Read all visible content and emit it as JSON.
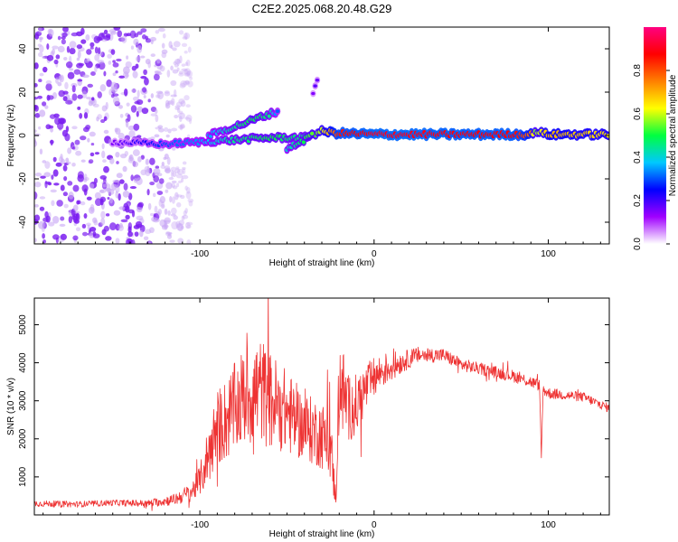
{
  "title": "C2E2.2025.068.20.48.G29",
  "chart_data": [
    {
      "type": "heatmap",
      "xlabel": "Height of straight line (km)",
      "ylabel": "Frequency (Hz)",
      "xlim": [
        -195,
        135
      ],
      "ylim": [
        -50,
        50
      ],
      "xticks": [
        -100,
        0,
        100
      ],
      "yticks": [
        -40,
        -20,
        0,
        20,
        40
      ],
      "colorbar": {
        "label": "Normalized spectral amplitude",
        "range": [
          0.0,
          1.0
        ],
        "ticks": [
          0.0,
          0.2,
          0.4,
          0.6,
          0.8
        ],
        "colors": [
          "#ffffff",
          "#a000ff",
          "#0000ff",
          "#00c8ff",
          "#00ff40",
          "#ffff00",
          "#ff8000",
          "#ff0000",
          "#ff0080"
        ]
      },
      "features": [
        {
          "name": "noise region",
          "x_range": [
            -195,
            -105
          ],
          "freq_range": [
            -50,
            50
          ],
          "amplitude": 0.1
        },
        {
          "name": "carrier trace",
          "x": [
            -150,
            -120,
            -100,
            -80,
            -60,
            -40,
            -30,
            -20,
            0,
            20,
            50,
            80,
            90,
            92,
            100,
            135
          ],
          "freq": [
            -3,
            -4,
            -3,
            -2,
            -1,
            -1,
            2,
            1,
            0.5,
            0.5,
            0.5,
            0.5,
            0.5,
            2,
            0.5,
            0.5
          ],
          "amplitude": [
            0.15,
            0.3,
            0.35,
            0.45,
            0.5,
            0.45,
            0.6,
            0.85,
            0.9,
            0.9,
            0.88,
            0.88,
            0.75,
            0.55,
            0.7,
            0.65
          ]
        },
        {
          "name": "upper branch",
          "x": [
            -95,
            -80,
            -70,
            -60,
            -55
          ],
          "freq": [
            0,
            4,
            7,
            10,
            11
          ],
          "amplitude": [
            0.35,
            0.45,
            0.5,
            0.45,
            0.3
          ]
        },
        {
          "name": "lower branch",
          "x": [
            -50,
            -45,
            -40,
            -35
          ],
          "freq": [
            -6,
            -4,
            -2,
            1
          ],
          "amplitude": [
            0.4,
            0.45,
            0.5,
            0.55
          ]
        },
        {
          "name": "echo",
          "x": [
            -35,
            -33,
            -32
          ],
          "freq": [
            20,
            24,
            27
          ],
          "amplitude": [
            0.15,
            0.2,
            0.12
          ]
        }
      ]
    },
    {
      "type": "line",
      "xlabel": "Height of straight line (km)",
      "ylabel": "SNR (10 * v/v)",
      "xlim": [
        -195,
        135
      ],
      "ylim": [
        0,
        5700
      ],
      "xticks": [
        -100,
        0,
        100
      ],
      "yticks": [
        1000,
        2000,
        3000,
        4000,
        5000
      ],
      "color": "#ee3333",
      "series": [
        {
          "x": [
            -195,
            -170,
            -150,
            -130,
            -115,
            -105,
            -100,
            -95,
            -90,
            -85,
            -80,
            -75,
            -70,
            -65,
            -60,
            -55,
            -50,
            -45,
            -40,
            -35,
            -30,
            -25,
            -22,
            -20,
            -15,
            -10,
            -5,
            0,
            5,
            10,
            15,
            20,
            25,
            30,
            40,
            50,
            60,
            70,
            80,
            90,
            95,
            96,
            97,
            100,
            110,
            120,
            130,
            135
          ],
          "y": [
            300,
            280,
            320,
            300,
            400,
            600,
            900,
            1600,
            2300,
            2500,
            2800,
            3100,
            3200,
            3300,
            3000,
            2900,
            2700,
            2500,
            2300,
            2200,
            2100,
            1800,
            400,
            3600,
            2800,
            2900,
            3300,
            3600,
            3800,
            3900,
            4000,
            4100,
            4200,
            4200,
            4200,
            3950,
            3850,
            3750,
            3650,
            3500,
            3400,
            1500,
            3300,
            3200,
            3150,
            3100,
            2900,
            2800
          ],
          "band": [
            80,
            80,
            80,
            90,
            150,
            250,
            400,
            800,
            1000,
            1100,
            1200,
            1300,
            1400,
            1400,
            1300,
            1200,
            1100,
            1000,
            900,
            900,
            900,
            900,
            300,
            1400,
            900,
            800,
            650,
            550,
            450,
            400,
            300,
            250,
            220,
            200,
            180,
            170,
            160,
            160,
            160,
            160,
            150,
            0,
            150,
            150,
            130,
            130,
            120,
            120
          ]
        }
      ]
    }
  ]
}
